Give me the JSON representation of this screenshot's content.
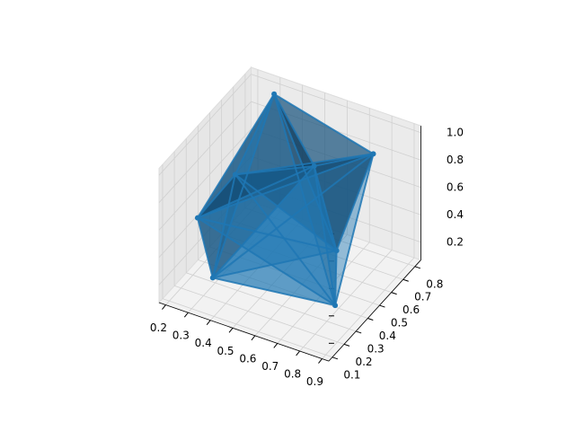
{
  "chart_data": {
    "type": "trisurf",
    "color": "#1f77b4",
    "x": [
      0.31,
      0.77,
      0.2,
      0.31,
      0.8,
      0.69,
      0.3,
      0.5
    ],
    "y": [
      0.78,
      0.75,
      0.34,
      0.26,
      0.37,
      0.59,
      0.47,
      0.76
    ],
    "z": [
      1.0,
      0.85,
      0.45,
      0.15,
      0.12,
      0.25,
      0.7,
      0.6
    ],
    "xlim": [
      0.17,
      0.93
    ],
    "ylim": [
      0.07,
      0.85
    ],
    "zlim": [
      0.07,
      1.05
    ],
    "xticks": [
      0.2,
      0.3,
      0.4,
      0.5,
      0.6,
      0.7,
      0.8,
      0.9
    ],
    "yticks": [
      0.1,
      0.2,
      0.3,
      0.4,
      0.5,
      0.6,
      0.7,
      0.8
    ],
    "zticks": [
      0.2,
      0.4,
      0.6,
      0.8,
      {
        "value": 1.0,
        "label": "1.0"
      }
    ],
    "grid": true
  }
}
